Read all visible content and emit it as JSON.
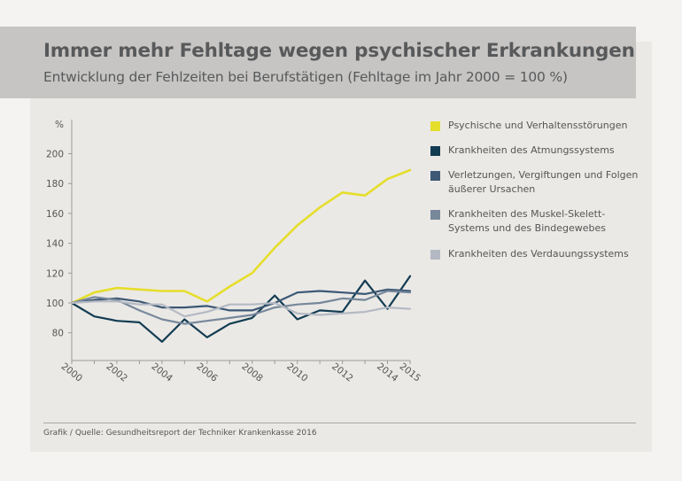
{
  "title": "Immer mehr Fehltage wegen psychischer Erkrankungen",
  "subtitle": "Entwicklung der Fehlzeiten bei Berufstätigen (Fehltage im Jahr 2000 = 100 %)",
  "source": "Grafik / Quelle: Gesundheitsreport der Techniker Krankenkasse 2016",
  "colors": {
    "background": "#f4f3f1",
    "card": "#ebe9e6",
    "header": "#c6c5c3",
    "text": "#58595b"
  },
  "chart_data": {
    "type": "line",
    "ylabel": "%",
    "ylim": [
      70,
      205
    ],
    "yticks": [
      80,
      100,
      120,
      140,
      160,
      180,
      200
    ],
    "x": [
      2000,
      2001,
      2002,
      2003,
      2004,
      2005,
      2006,
      2007,
      2008,
      2009,
      2010,
      2011,
      2012,
      2013,
      2014,
      2015
    ],
    "xtick_labels": [
      "2000",
      "2002",
      "2004",
      "2006",
      "2008",
      "2010",
      "2012",
      "2014",
      "2015"
    ],
    "legend_position": "right",
    "series": [
      {
        "name": "Psychische und Verhaltensstörungen",
        "color": "#e5de2b",
        "values": [
          100,
          107,
          110,
          109,
          108,
          108,
          101,
          111,
          120,
          137,
          152,
          164,
          174,
          172,
          183,
          189
        ]
      },
      {
        "name": "Krankheiten des Atmungssystems",
        "color": "#123c52",
        "values": [
          100,
          91,
          88,
          87,
          74,
          89,
          77,
          86,
          90,
          105,
          89,
          95,
          94,
          115,
          96,
          118
        ]
      },
      {
        "name": "Verletzungen, Vergiftungen und Folgen äußerer Ursachen",
        "color": "#3c5875",
        "values": [
          100,
          102,
          103,
          101,
          97,
          97,
          98,
          95,
          95,
          100,
          107,
          108,
          107,
          106,
          109,
          108
        ]
      },
      {
        "name": "Krankheiten des Muskel-Skelett-Systems und des Bindegewebes",
        "color": "#77889b",
        "values": [
          100,
          104,
          102,
          95,
          89,
          86,
          88,
          90,
          92,
          97,
          99,
          100,
          103,
          102,
          108,
          107
        ]
      },
      {
        "name": "Krankheiten des Verdauungssystems",
        "color": "#b4b9c3",
        "values": [
          100,
          101,
          101,
          99,
          99,
          91,
          94,
          99,
          99,
          100,
          93,
          92,
          93,
          94,
          97,
          96
        ]
      }
    ]
  }
}
